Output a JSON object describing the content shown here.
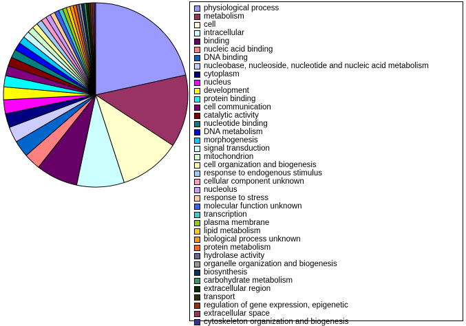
{
  "chart_data": {
    "type": "pie",
    "title": "",
    "legend_position": "right",
    "series": [
      {
        "label": "physiological process",
        "value": 22.0,
        "color": "#9999ff"
      },
      {
        "label": "metabolism",
        "value": 13.0,
        "color": "#993366"
      },
      {
        "label": "cell",
        "value": 11.0,
        "color": "#ffffcc"
      },
      {
        "label": "intracellular",
        "value": 8.5,
        "color": "#ccffff"
      },
      {
        "label": "binding",
        "value": 7.5,
        "color": "#660066"
      },
      {
        "label": "nucleic acid binding",
        "value": 3.0,
        "color": "#ff8080"
      },
      {
        "label": "DNA binding",
        "value": 3.0,
        "color": "#0066cc"
      },
      {
        "label": "nucleobase, nucleoside, nucleotide and nucleic acid metabolism",
        "value": 2.8,
        "color": "#ccccff"
      },
      {
        "label": "cytoplasm",
        "value": 2.5,
        "color": "#000080"
      },
      {
        "label": "nucleus",
        "value": 2.5,
        "color": "#ff00ff"
      },
      {
        "label": "development",
        "value": 2.3,
        "color": "#ffff00"
      },
      {
        "label": "protein binding",
        "value": 2.0,
        "color": "#00ffff"
      },
      {
        "label": "cell communication",
        "value": 1.8,
        "color": "#800080"
      },
      {
        "label": "catalytic activity",
        "value": 1.6,
        "color": "#800000"
      },
      {
        "label": "nucleotide binding",
        "value": 1.5,
        "color": "#008080"
      },
      {
        "label": "DNA metabolism",
        "value": 1.4,
        "color": "#0000ff"
      },
      {
        "label": "morphogenesis",
        "value": 1.3,
        "color": "#00ccff"
      },
      {
        "label": "signal transduction",
        "value": 1.2,
        "color": "#ccffff"
      },
      {
        "label": "mitochondrion",
        "value": 1.1,
        "color": "#ccffcc"
      },
      {
        "label": "cell organization and biogenesis",
        "value": 1.0,
        "color": "#ffff99"
      },
      {
        "label": "response to endogenous stimulus",
        "value": 1.0,
        "color": "#99ccff"
      },
      {
        "label": "cellular component unknown",
        "value": 0.95,
        "color": "#ff99cc"
      },
      {
        "label": "nucleolus",
        "value": 0.9,
        "color": "#cc99ff"
      },
      {
        "label": "response to stress",
        "value": 0.85,
        "color": "#ffcc99"
      },
      {
        "label": "molecular function unknown",
        "value": 0.8,
        "color": "#3366ff"
      },
      {
        "label": "transcription",
        "value": 0.75,
        "color": "#33cccc"
      },
      {
        "label": "plasma membrane",
        "value": 0.7,
        "color": "#99cc00"
      },
      {
        "label": "lipid metabolism",
        "value": 0.65,
        "color": "#ffcc00"
      },
      {
        "label": "biological process unknown",
        "value": 0.6,
        "color": "#ff9900"
      },
      {
        "label": "protein metabolism",
        "value": 0.55,
        "color": "#ff6600"
      },
      {
        "label": "hydrolase activity",
        "value": 0.5,
        "color": "#666699"
      },
      {
        "label": "organelle organization and biogenesis",
        "value": 0.45,
        "color": "#969696"
      },
      {
        "label": "biosynthesis",
        "value": 0.42,
        "color": "#003366"
      },
      {
        "label": "carbohydrate metabolism",
        "value": 0.4,
        "color": "#339966"
      },
      {
        "label": "extracellular region",
        "value": 0.38,
        "color": "#003300"
      },
      {
        "label": "transport",
        "value": 0.36,
        "color": "#333300"
      },
      {
        "label": "regulation of gene expression, epigenetic",
        "value": 0.34,
        "color": "#993300"
      },
      {
        "label": "extracellular space",
        "value": 0.32,
        "color": "#993366"
      },
      {
        "label": "cytoskeleton organization and biogenesis",
        "value": 0.3,
        "color": "#333399"
      }
    ]
  }
}
